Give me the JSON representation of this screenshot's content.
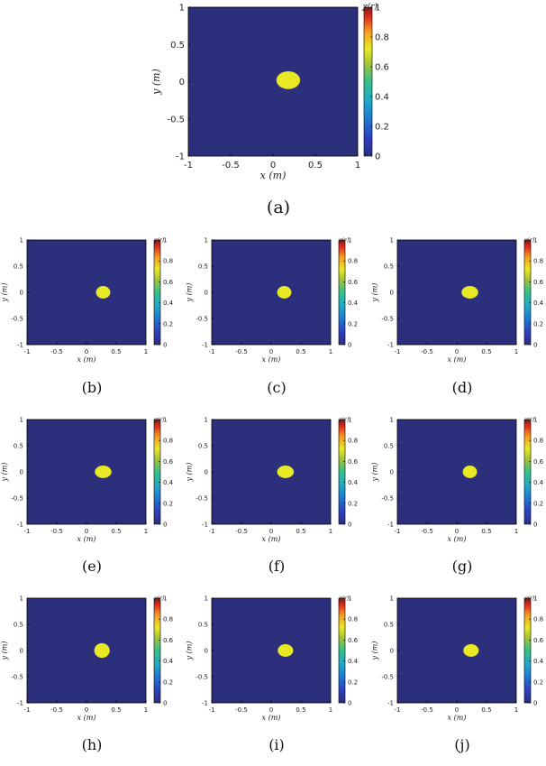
{
  "colors": {
    "background": "#2b2f7c",
    "blob": "#e8e825",
    "axis": "#000000"
  },
  "chart_data": [
    {
      "id": "a",
      "type": "heatmap",
      "label": "(a)",
      "xlabel": "x (m)",
      "ylabel": "y (m)",
      "colorbar_title": "χ(r)",
      "xlim": [
        -1,
        1
      ],
      "ylim": [
        -1,
        1
      ],
      "x_ticks": [
        "-1",
        "-0.5",
        "0",
        "0.5",
        "1"
      ],
      "y_ticks": [
        "1",
        "0.5",
        "0",
        "-0.5",
        "-1"
      ],
      "colorbar_range": [
        0,
        1
      ],
      "colorbar_ticks": [
        "1",
        "0.8",
        "0.6",
        "0.4",
        "0.2",
        "0"
      ],
      "grid": false,
      "blob": {
        "cx": 0.18,
        "cy": 0.02,
        "rx": 0.14,
        "ry": 0.12,
        "value": 0.7
      }
    },
    {
      "id": "b",
      "type": "heatmap",
      "label": "(b)",
      "xlabel": "x (m)",
      "ylabel": "y (m)",
      "colorbar_title": "χ(r)",
      "xlim": [
        -1,
        1
      ],
      "ylim": [
        -1,
        1
      ],
      "x_ticks": [
        "-1",
        "-0.5",
        "0",
        "0.5",
        "1"
      ],
      "y_ticks": [
        "1",
        "0.5",
        "0",
        "-0.5",
        "-1"
      ],
      "colorbar_range": [
        0,
        1
      ],
      "colorbar_ticks": [
        "1",
        "0.8",
        "0.6",
        "0.4",
        "0.2",
        "0"
      ],
      "grid": false,
      "blob": {
        "cx": 0.28,
        "cy": 0.0,
        "rx": 0.12,
        "ry": 0.12,
        "value": 0.7
      }
    },
    {
      "id": "c",
      "type": "heatmap",
      "label": "(c)",
      "xlabel": "x (m)",
      "ylabel": "y (m)",
      "colorbar_title": "χ(r)",
      "xlim": [
        -1,
        1
      ],
      "ylim": [
        -1,
        1
      ],
      "x_ticks": [
        "-1",
        "-0.5",
        "0",
        "0.5",
        "1"
      ],
      "y_ticks": [
        "1",
        "0.5",
        "0",
        "-0.5",
        "-1"
      ],
      "colorbar_range": [
        0,
        1
      ],
      "colorbar_ticks": [
        "1",
        "0.8",
        "0.6",
        "0.4",
        "0.2",
        "0"
      ],
      "grid": false,
      "blob": {
        "cx": 0.22,
        "cy": 0.0,
        "rx": 0.12,
        "ry": 0.12,
        "value": 0.7
      }
    },
    {
      "id": "d",
      "type": "heatmap",
      "label": "(d)",
      "xlabel": "x (m)",
      "ylabel": "y (m)",
      "colorbar_title": "χ(r)",
      "xlim": [
        -1,
        1
      ],
      "ylim": [
        -1,
        1
      ],
      "x_ticks": [
        "-1",
        "-0.5",
        "0",
        "0.5",
        "1"
      ],
      "y_ticks": [
        "1",
        "0.5",
        "0",
        "-0.5",
        "-1"
      ],
      "colorbar_range": [
        0,
        1
      ],
      "colorbar_ticks": [
        "1",
        "0.8",
        "0.6",
        "0.4",
        "0.2",
        "0"
      ],
      "grid": false,
      "blob": {
        "cx": 0.22,
        "cy": 0.0,
        "rx": 0.14,
        "ry": 0.12,
        "value": 0.7
      }
    },
    {
      "id": "e",
      "type": "heatmap",
      "label": "(e)",
      "xlabel": "x (m)",
      "ylabel": "y (m)",
      "colorbar_title": "χ(r)",
      "xlim": [
        -1,
        1
      ],
      "ylim": [
        -1,
        1
      ],
      "x_ticks": [
        "-1",
        "-0.5",
        "0",
        "0.5",
        "1"
      ],
      "y_ticks": [
        "1",
        "0.5",
        "0",
        "-0.5",
        "-1"
      ],
      "colorbar_range": [
        0,
        1
      ],
      "colorbar_ticks": [
        "1",
        "0.8",
        "0.6",
        "0.4",
        "0.2",
        "0"
      ],
      "grid": false,
      "blob": {
        "cx": 0.28,
        "cy": 0.0,
        "rx": 0.14,
        "ry": 0.12,
        "value": 0.7
      }
    },
    {
      "id": "f",
      "type": "heatmap",
      "label": "(f)",
      "xlabel": "x (m)",
      "ylabel": "y (m)",
      "colorbar_title": "χ(r)",
      "xlim": [
        -1,
        1
      ],
      "ylim": [
        -1,
        1
      ],
      "x_ticks": [
        "-1",
        "-0.5",
        "0",
        "0.5",
        "1"
      ],
      "y_ticks": [
        "1",
        "0.5",
        "0",
        "-0.5",
        "-1"
      ],
      "colorbar_range": [
        0,
        1
      ],
      "colorbar_ticks": [
        "1",
        "0.8",
        "0.6",
        "0.4",
        "0.2",
        "0"
      ],
      "grid": false,
      "blob": {
        "cx": 0.24,
        "cy": 0.0,
        "rx": 0.14,
        "ry": 0.12,
        "value": 0.7
      }
    },
    {
      "id": "g",
      "type": "heatmap",
      "label": "(g)",
      "xlabel": "x (m)",
      "ylabel": "y (m)",
      "colorbar_title": "χ(r)",
      "xlim": [
        -1,
        1
      ],
      "ylim": [
        -1,
        1
      ],
      "x_ticks": [
        "-1",
        "-0.5",
        "0",
        "0.5",
        "1"
      ],
      "y_ticks": [
        "1",
        "0.5",
        "0",
        "-0.5",
        "-1"
      ],
      "colorbar_range": [
        0,
        1
      ],
      "colorbar_ticks": [
        "1",
        "0.8",
        "0.6",
        "0.4",
        "0.2",
        "0"
      ],
      "grid": false,
      "blob": {
        "cx": 0.22,
        "cy": 0.0,
        "rx": 0.12,
        "ry": 0.12,
        "value": 0.7
      }
    },
    {
      "id": "h",
      "type": "heatmap",
      "label": "(h)",
      "xlabel": "x (m)",
      "ylabel": "y (m)",
      "colorbar_title": "χ(r)",
      "xlim": [
        -1,
        1
      ],
      "ylim": [
        -1,
        1
      ],
      "x_ticks": [
        "-1",
        "-0.5",
        "0",
        "0.5",
        "1"
      ],
      "y_ticks": [
        "1",
        "0.5",
        "0",
        "-0.5",
        "-1"
      ],
      "colorbar_range": [
        0,
        1
      ],
      "colorbar_ticks": [
        "1",
        "0.8",
        "0.6",
        "0.4",
        "0.2",
        "0"
      ],
      "grid": false,
      "blob": {
        "cx": 0.26,
        "cy": 0.0,
        "rx": 0.13,
        "ry": 0.14,
        "value": 0.7
      }
    },
    {
      "id": "i",
      "type": "heatmap",
      "label": "(i)",
      "xlabel": "x (m)",
      "ylabel": "y (m)",
      "colorbar_title": "χ(r)",
      "xlim": [
        -1,
        1
      ],
      "ylim": [
        -1,
        1
      ],
      "x_ticks": [
        "-1",
        "-0.5",
        "0",
        "0.5",
        "1"
      ],
      "y_ticks": [
        "1",
        "0.5",
        "0",
        "-0.5",
        "-1"
      ],
      "colorbar_range": [
        0,
        1
      ],
      "colorbar_ticks": [
        "1",
        "0.8",
        "0.6",
        "0.4",
        "0.2",
        "0"
      ],
      "grid": false,
      "blob": {
        "cx": 0.24,
        "cy": 0.0,
        "rx": 0.13,
        "ry": 0.12,
        "value": 0.7
      }
    },
    {
      "id": "j",
      "type": "heatmap",
      "label": "(j)",
      "xlabel": "x (m)",
      "ylabel": "y (m)",
      "colorbar_title": "χ(r)",
      "xlim": [
        -1,
        1
      ],
      "ylim": [
        -1,
        1
      ],
      "x_ticks": [
        "-1",
        "-0.5",
        "0",
        "0.5",
        "1"
      ],
      "y_ticks": [
        "1",
        "0.5",
        "0",
        "-0.5",
        "-1"
      ],
      "colorbar_range": [
        0,
        1
      ],
      "colorbar_ticks": [
        "1",
        "0.8",
        "0.6",
        "0.4",
        "0.2",
        "0"
      ],
      "grid": false,
      "blob": {
        "cx": 0.24,
        "cy": 0.0,
        "rx": 0.13,
        "ry": 0.12,
        "value": 0.7
      }
    }
  ]
}
